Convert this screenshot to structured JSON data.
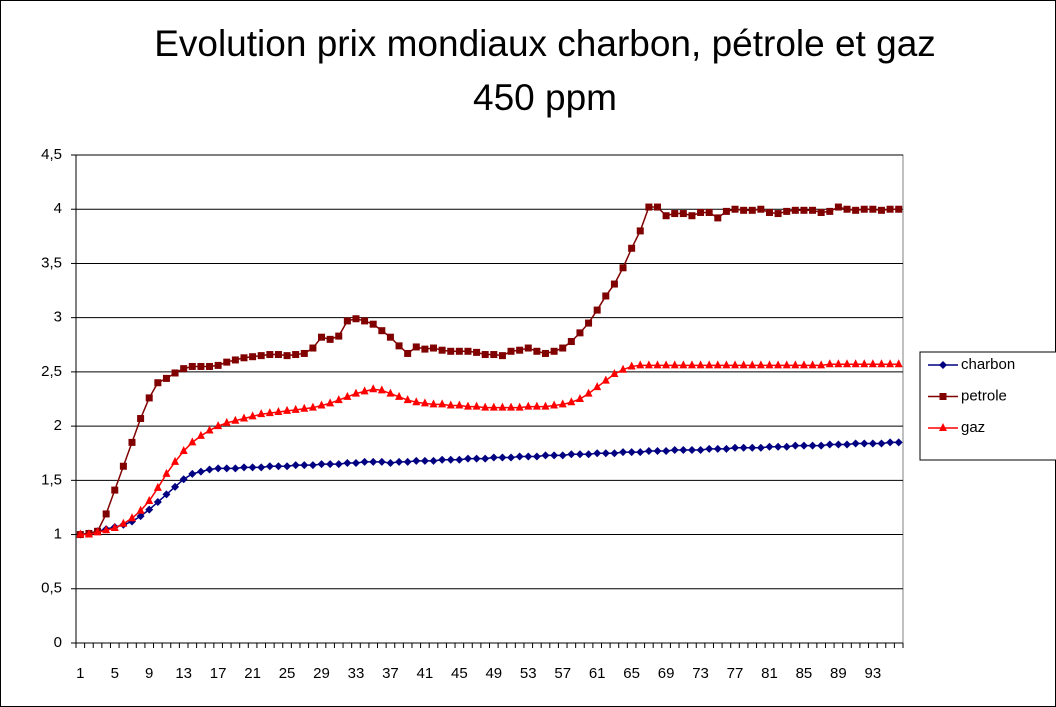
{
  "chart_data": {
    "type": "line",
    "title": [
      "Evolution prix mondiaux charbon, pétrole et gaz",
      "450 ppm"
    ],
    "categories": [
      1,
      null,
      null,
      null,
      5,
      null,
      null,
      null,
      9,
      null,
      null,
      null,
      13,
      null,
      null,
      null,
      17,
      null,
      null,
      null,
      21,
      null,
      null,
      null,
      25,
      null,
      null,
      null,
      29,
      null,
      null,
      null,
      33,
      null,
      null,
      null,
      37,
      null,
      null,
      null,
      41,
      null,
      null,
      null,
      45,
      null,
      null,
      null,
      49,
      null,
      null,
      null,
      53,
      null,
      null,
      null,
      57,
      null,
      null,
      null,
      61,
      null,
      null,
      null,
      65,
      null,
      null,
      null,
      69,
      null,
      null,
      null,
      73,
      null,
      null,
      null,
      77,
      null,
      null,
      null,
      81,
      null,
      null,
      null,
      85,
      null,
      null,
      null,
      89,
      null,
      null,
      null,
      93,
      null,
      null,
      null
    ],
    "series": [
      {
        "name": "charbon",
        "color": "#000080",
        "marker": "diamond",
        "values": [
          1.0,
          1.01,
          1.03,
          1.05,
          1.07,
          1.09,
          1.12,
          1.17,
          1.23,
          1.3,
          1.37,
          1.44,
          1.51,
          1.56,
          1.58,
          1.6,
          1.61,
          1.61,
          1.61,
          1.62,
          1.62,
          1.62,
          1.63,
          1.63,
          1.63,
          1.64,
          1.64,
          1.64,
          1.65,
          1.65,
          1.65,
          1.66,
          1.66,
          1.67,
          1.67,
          1.67,
          1.66,
          1.67,
          1.67,
          1.68,
          1.68,
          1.68,
          1.69,
          1.69,
          1.69,
          1.7,
          1.7,
          1.7,
          1.71,
          1.71,
          1.71,
          1.72,
          1.72,
          1.72,
          1.73,
          1.73,
          1.73,
          1.74,
          1.74,
          1.74,
          1.75,
          1.75,
          1.75,
          1.76,
          1.76,
          1.76,
          1.77,
          1.77,
          1.77,
          1.78,
          1.78,
          1.78,
          1.78,
          1.79,
          1.79,
          1.79,
          1.8,
          1.8,
          1.8,
          1.8,
          1.81,
          1.81,
          1.81,
          1.82,
          1.82,
          1.82,
          1.82,
          1.83,
          1.83,
          1.83,
          1.84,
          1.84,
          1.84,
          1.84,
          1.85,
          1.85
        ]
      },
      {
        "name": "petrole",
        "color": "#800000",
        "marker": "square",
        "values": [
          1.0,
          1.01,
          1.03,
          1.19,
          1.41,
          1.63,
          1.85,
          2.07,
          2.26,
          2.4,
          2.44,
          2.49,
          2.53,
          2.55,
          2.55,
          2.55,
          2.56,
          2.59,
          2.61,
          2.63,
          2.64,
          2.65,
          2.66,
          2.66,
          2.65,
          2.66,
          2.67,
          2.72,
          2.82,
          2.8,
          2.83,
          2.97,
          2.99,
          2.97,
          2.94,
          2.88,
          2.82,
          2.74,
          2.67,
          2.73,
          2.71,
          2.72,
          2.7,
          2.69,
          2.69,
          2.69,
          2.68,
          2.66,
          2.66,
          2.65,
          2.69,
          2.7,
          2.72,
          2.69,
          2.67,
          2.69,
          2.72,
          2.78,
          2.86,
          2.95,
          3.07,
          3.2,
          3.31,
          3.46,
          3.64,
          3.8,
          4.02,
          4.02,
          3.94,
          3.96,
          3.96,
          3.94,
          3.97,
          3.97,
          3.92,
          3.98,
          4.0,
          3.99,
          3.99,
          4.0,
          3.97,
          3.96,
          3.98,
          3.99,
          3.99,
          3.99,
          3.97,
          3.98,
          4.02,
          4.0,
          3.99,
          4.0,
          4.0,
          3.99,
          4.0,
          4.0
        ]
      },
      {
        "name": "gaz",
        "color": "#FF0000",
        "marker": "triangle",
        "values": [
          1.0,
          1.0,
          1.02,
          1.04,
          1.06,
          1.1,
          1.15,
          1.22,
          1.31,
          1.43,
          1.56,
          1.67,
          1.77,
          1.85,
          1.91,
          1.96,
          2.0,
          2.03,
          2.05,
          2.07,
          2.09,
          2.11,
          2.12,
          2.13,
          2.14,
          2.15,
          2.16,
          2.17,
          2.19,
          2.21,
          2.24,
          2.27,
          2.3,
          2.32,
          2.34,
          2.33,
          2.3,
          2.27,
          2.24,
          2.22,
          2.21,
          2.2,
          2.2,
          2.19,
          2.19,
          2.18,
          2.18,
          2.17,
          2.17,
          2.17,
          2.17,
          2.17,
          2.18,
          2.18,
          2.18,
          2.19,
          2.2,
          2.22,
          2.25,
          2.3,
          2.36,
          2.42,
          2.48,
          2.52,
          2.55,
          2.56,
          2.56,
          2.56,
          2.56,
          2.56,
          2.56,
          2.56,
          2.56,
          2.56,
          2.56,
          2.56,
          2.56,
          2.56,
          2.56,
          2.56,
          2.56,
          2.56,
          2.56,
          2.56,
          2.56,
          2.56,
          2.56,
          2.57,
          2.57,
          2.57,
          2.57,
          2.57,
          2.57,
          2.57,
          2.57,
          2.57
        ]
      }
    ],
    "ylim": [
      0,
      4.5
    ],
    "yticks": [
      0,
      {
        "value": 0.5,
        "label": "0,5"
      },
      1,
      {
        "value": 1.5,
        "label": "1,5"
      },
      2,
      {
        "value": 2.5,
        "label": "2,5"
      },
      3,
      {
        "value": 3.5,
        "label": "3,5"
      },
      4,
      {
        "value": 4.5,
        "label": "4,5"
      }
    ],
    "grid": true,
    "legend": "right"
  }
}
